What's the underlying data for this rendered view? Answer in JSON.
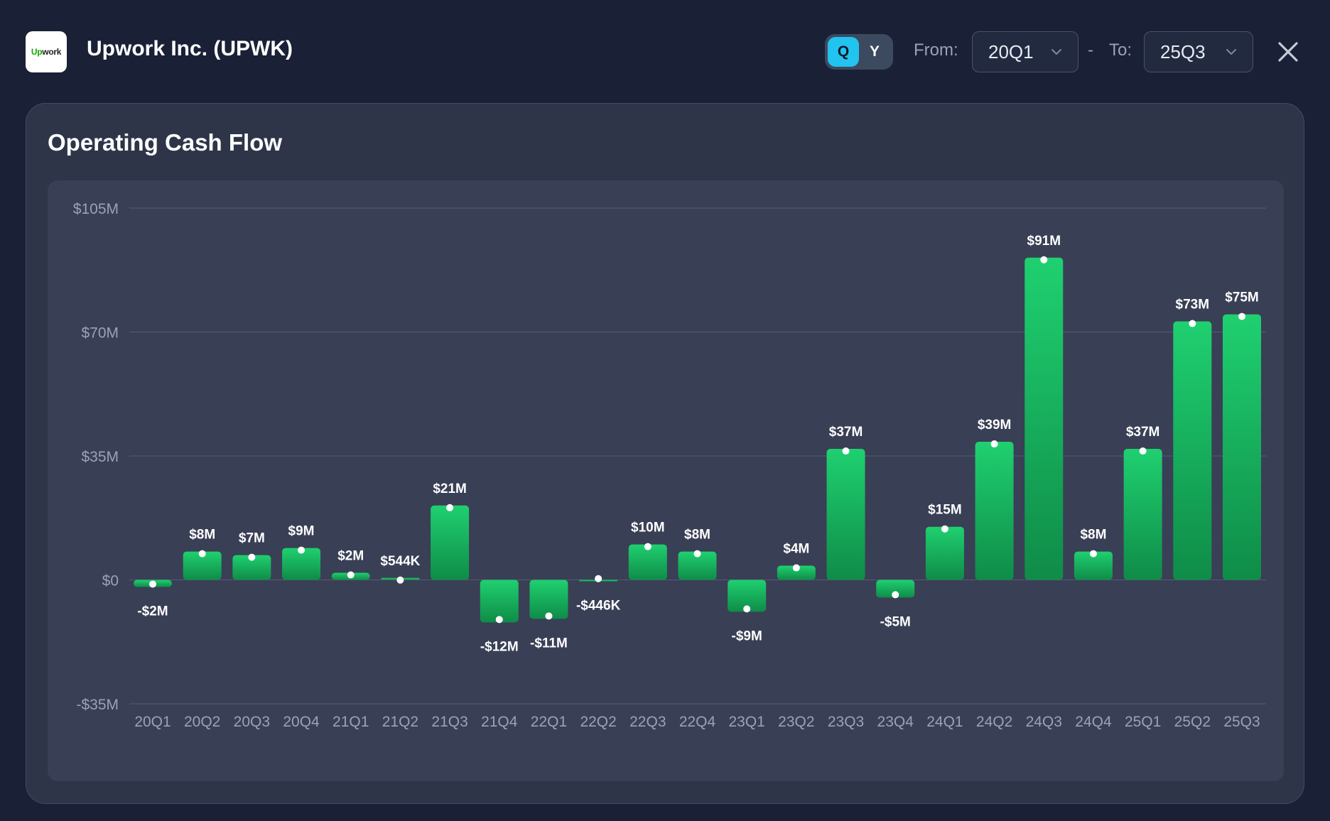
{
  "header": {
    "logo_text_a": "Up",
    "logo_text_b": "work",
    "company_title": "Upwork Inc. (UPWK)",
    "toggle_q": "Q",
    "toggle_y": "Y",
    "from_label": "From:",
    "from_value": "20Q1",
    "dash": "-",
    "to_label": "To:",
    "to_value": "25Q3"
  },
  "card": {
    "title": "Operating Cash Flow"
  },
  "colors": {
    "bar_top": "#1fd070",
    "bar_bottom": "#0f8c48",
    "grid": "#555d72",
    "tick_text": "#9aa3b5",
    "accent": "#22c3ee"
  },
  "chart_data": {
    "type": "bar",
    "title": "Operating Cash Flow",
    "xlabel": "",
    "ylabel": "",
    "ylim": [
      -35,
      105
    ],
    "yticks": [
      -35,
      0,
      35,
      70,
      105
    ],
    "ytick_labels": [
      "-$35M",
      "$0",
      "$35M",
      "$70M",
      "$105M"
    ],
    "grid": true,
    "categories": [
      "20Q1",
      "20Q2",
      "20Q3",
      "20Q4",
      "21Q1",
      "21Q2",
      "21Q3",
      "21Q4",
      "22Q1",
      "22Q2",
      "22Q3",
      "22Q4",
      "23Q1",
      "23Q2",
      "23Q3",
      "23Q4",
      "24Q1",
      "24Q2",
      "24Q3",
      "24Q4",
      "25Q1",
      "25Q2",
      "25Q3"
    ],
    "values": [
      -2,
      8,
      7,
      9,
      2,
      0.544,
      21,
      -12,
      -11,
      -0.446,
      10,
      8,
      -9,
      4,
      37,
      -5,
      15,
      39,
      91,
      8,
      37,
      73,
      75
    ],
    "labels": [
      "-$2M",
      "$8M",
      "$7M",
      "$9M",
      "$2M",
      "$544K",
      "$21M",
      "-$12M",
      "-$11M",
      "-$446K",
      "$10M",
      "$8M",
      "-$9M",
      "$4M",
      "$37M",
      "-$5M",
      "$15M",
      "$39M",
      "$91M",
      "$8M",
      "$37M",
      "$73M",
      "$75M"
    ]
  }
}
